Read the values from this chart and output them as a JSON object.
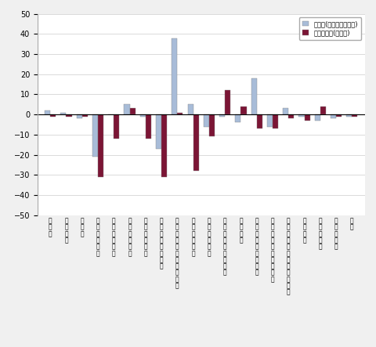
{
  "categories": [
    "掱工業",
    "製造工業",
    "鐵銅業",
    "非鉄金属工業",
    "金属製品工業",
    "一般機械工業",
    "電気機械工業",
    "情報通信機械工業",
    "電子部品・デバイス工業",
    "輸送機械工業",
    "精密機械工業",
    "窑業・土石製品工業",
    "化学工業",
    "石油・石炭製品工業",
    "プラスチック製品工業",
    "パルプ・紙・紙加工品工業",
    "繊維工業",
    "食料品工業",
    "その他工業",
    "拡業"
  ],
  "mom": [
    2,
    1,
    -2,
    -21,
    0,
    5,
    -1,
    -17,
    38,
    5,
    -6,
    -1,
    -4,
    18,
    -6,
    3,
    -1,
    -3,
    -2,
    -1
  ],
  "yoy": [
    -1,
    -1,
    -1,
    -31,
    -12,
    3,
    -12,
    -31,
    1,
    -28,
    -11,
    12,
    4,
    -7,
    -7,
    -2,
    -3,
    4,
    -1,
    -1
  ],
  "mom_color": "#a8bcd8",
  "yoy_color": "#7b1535",
  "bar_width": 0.35,
  "ylim": [
    -50,
    50
  ],
  "yticks": [
    -50,
    -40,
    -30,
    -20,
    -10,
    0,
    10,
    20,
    30,
    40,
    50
  ],
  "legend_mom": "前月比(季節調整済指数)",
  "legend_yoy": "前年同月比(原指数)",
  "fig_width": 4.8,
  "fig_height": 4.43,
  "dpi": 100,
  "bg_color": "#f0f0f0",
  "plot_bg": "#ffffff"
}
